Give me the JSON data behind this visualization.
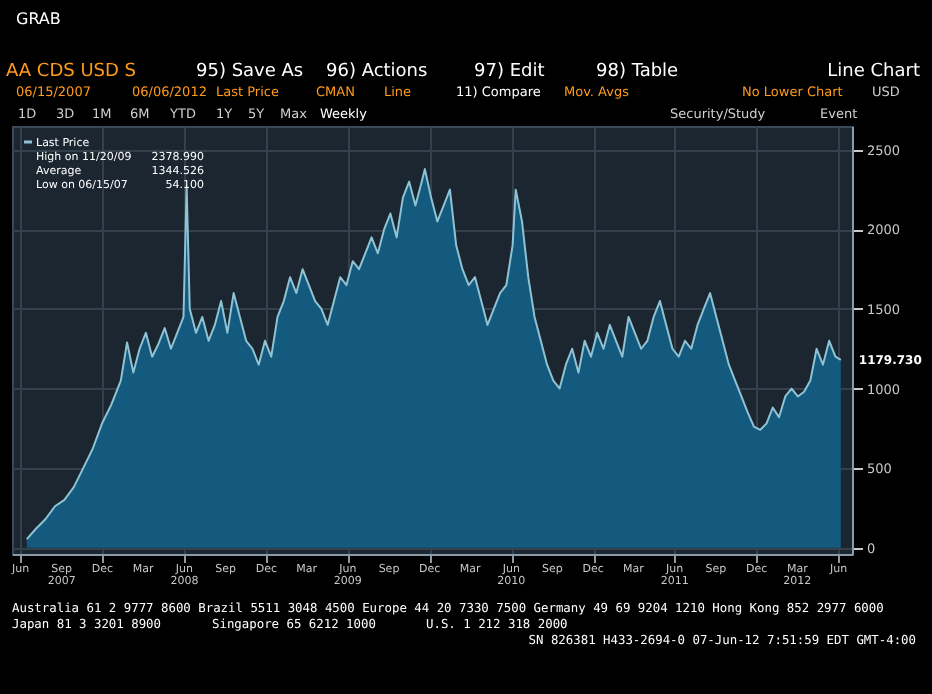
{
  "chart_data": {
    "type": "area",
    "title": "AA CDS USD S",
    "annotations": [
      "GRAB",
      "95) Save As",
      "96) Actions",
      "97) Edit",
      "98) Table",
      "Line Chart",
      "06/15/2007",
      "06/06/2012",
      "Last Price",
      "CMAN",
      "Line",
      "11) Compare",
      "Mov. Avgs",
      "No Lower Chart",
      "USD",
      "1D",
      "3D",
      "1M",
      "6M",
      "YTD",
      "1Y",
      "5Y",
      "Max",
      "Weekly",
      "Security/Study",
      "Event",
      "High on 11/20/09",
      "2378.990",
      "Average",
      "1344.526",
      "Low on 06/15/07",
      "54.100",
      "Australia 61 2 9777 8600 Brazil 5511 3048 4500 Europe 44 20 7330 7500 Germany 49 69 9204 1210 Hong Kong 852 2977 6000",
      "Japan 81 3 3201 8900",
      "Singapore 65 6212 1000",
      "U.S. 1 212 318 2000",
      "SN 826381 H433-2694-0 07-Jun-12 7:51:59 EDT GMT-4:00",
      {
        "text": "1179.730",
        "x": "2012-06-06",
        "y": 1179.73
      }
    ],
    "x": [
      "2007-06-15",
      "2007-07-06",
      "2007-07-27",
      "2007-08-17",
      "2007-09-07",
      "2007-09-28",
      "2007-10-19",
      "2007-11-09",
      "2007-11-30",
      "2007-12-21",
      "2008-01-11",
      "2008-01-25",
      "2008-02-08",
      "2008-02-22",
      "2008-03-07",
      "2008-03-21",
      "2008-04-04",
      "2008-04-18",
      "2008-05-02",
      "2008-05-16",
      "2008-05-30",
      "2008-06-06",
      "2008-06-13",
      "2008-06-27",
      "2008-07-11",
      "2008-07-25",
      "2008-08-08",
      "2008-08-22",
      "2008-09-05",
      "2008-09-19",
      "2008-10-03",
      "2008-10-17",
      "2008-10-31",
      "2008-11-14",
      "2008-11-28",
      "2008-12-12",
      "2008-12-26",
      "2009-01-09",
      "2009-01-23",
      "2009-02-06",
      "2009-02-20",
      "2009-03-06",
      "2009-03-20",
      "2009-04-03",
      "2009-04-17",
      "2009-05-01",
      "2009-05-15",
      "2009-05-29",
      "2009-06-12",
      "2009-06-26",
      "2009-07-10",
      "2009-07-24",
      "2009-08-07",
      "2009-08-21",
      "2009-09-04",
      "2009-09-18",
      "2009-10-02",
      "2009-10-16",
      "2009-10-30",
      "2009-11-13",
      "2009-11-20",
      "2009-12-04",
      "2009-12-18",
      "2010-01-01",
      "2010-01-15",
      "2010-01-29",
      "2010-02-12",
      "2010-02-26",
      "2010-03-12",
      "2010-03-26",
      "2010-04-09",
      "2010-04-23",
      "2010-05-07",
      "2010-05-21",
      "2010-06-04",
      "2010-06-11",
      "2010-06-25",
      "2010-07-09",
      "2010-07-23",
      "2010-08-06",
      "2010-08-20",
      "2010-09-03",
      "2010-09-17",
      "2010-10-01",
      "2010-10-15",
      "2010-10-29",
      "2010-11-12",
      "2010-11-26",
      "2010-12-10",
      "2010-12-24",
      "2011-01-07",
      "2011-01-21",
      "2011-02-04",
      "2011-02-18",
      "2011-03-04",
      "2011-03-18",
      "2011-04-01",
      "2011-04-15",
      "2011-04-29",
      "2011-05-13",
      "2011-05-27",
      "2011-06-10",
      "2011-06-24",
      "2011-07-08",
      "2011-07-22",
      "2011-08-05",
      "2011-08-19",
      "2011-09-02",
      "2011-09-16",
      "2011-09-30",
      "2011-10-14",
      "2011-10-28",
      "2011-11-11",
      "2011-11-25",
      "2011-12-09",
      "2011-12-23",
      "2012-01-06",
      "2012-01-20",
      "2012-02-03",
      "2012-02-17",
      "2012-03-02",
      "2012-03-16",
      "2012-03-30",
      "2012-04-13",
      "2012-04-27",
      "2012-05-11",
      "2012-05-25",
      "2012-06-06"
    ],
    "series": [
      {
        "name": "Last Price",
        "color": "#8fc3d3",
        "values": [
          54,
          120,
          180,
          260,
          300,
          380,
          500,
          620,
          780,
          900,
          1050,
          1290,
          1100,
          1250,
          1350,
          1200,
          1280,
          1380,
          1250,
          1350,
          1450,
          2270,
          1500,
          1350,
          1450,
          1300,
          1400,
          1550,
          1350,
          1600,
          1450,
          1300,
          1250,
          1150,
          1300,
          1200,
          1450,
          1550,
          1700,
          1600,
          1750,
          1650,
          1550,
          1500,
          1400,
          1550,
          1700,
          1650,
          1800,
          1750,
          1850,
          1950,
          1850,
          2000,
          2100,
          1950,
          2200,
          2300,
          2150,
          2300,
          2379,
          2200,
          2050,
          2150,
          2250,
          1900,
          1750,
          1650,
          1700,
          1550,
          1400,
          1500,
          1600,
          1650,
          1900,
          2250,
          2050,
          1700,
          1450,
          1300,
          1150,
          1050,
          1000,
          1150,
          1250,
          1100,
          1300,
          1200,
          1350,
          1250,
          1400,
          1300,
          1200,
          1450,
          1350,
          1250,
          1300,
          1450,
          1550,
          1400,
          1250,
          1200,
          1300,
          1250,
          1400,
          1500,
          1600,
          1450,
          1300,
          1150,
          1050,
          950,
          850,
          760,
          740,
          780,
          880,
          820,
          950,
          1000,
          950,
          980,
          1050,
          1250,
          1150,
          1300,
          1200,
          1179.73
        ]
      }
    ],
    "xlim": [
      "2007-05-13",
      "2012-07-01"
    ],
    "xticks": [
      {
        "value": "2007-06-01",
        "label": "Jun"
      },
      {
        "value": "2007-09-01",
        "label": "Sep\n2007"
      },
      {
        "value": "2007-12-01",
        "label": "Dec"
      },
      {
        "value": "2008-03-01",
        "label": "Mar"
      },
      {
        "value": "2008-06-01",
        "label": "Jun\n2008"
      },
      {
        "value": "2008-09-01",
        "label": "Sep"
      },
      {
        "value": "2008-12-01",
        "label": "Dec"
      },
      {
        "value": "2009-03-01",
        "label": "Mar"
      },
      {
        "value": "2009-06-01",
        "label": "Jun\n2009"
      },
      {
        "value": "2009-09-01",
        "label": "Sep"
      },
      {
        "value": "2009-12-01",
        "label": "Dec"
      },
      {
        "value": "2010-03-01",
        "label": "Mar"
      },
      {
        "value": "2010-06-01",
        "label": "Jun\n2010"
      },
      {
        "value": "2010-09-01",
        "label": "Sep"
      },
      {
        "value": "2010-12-01",
        "label": "Dec"
      },
      {
        "value": "2011-03-01",
        "label": "Mar"
      },
      {
        "value": "2011-06-01",
        "label": "Jun\n2011"
      },
      {
        "value": "2011-09-01",
        "label": "Sep"
      },
      {
        "value": "2011-12-01",
        "label": "Dec"
      },
      {
        "value": "2012-03-01",
        "label": "Mar\n2012"
      },
      {
        "value": "2012-06-01",
        "label": "Jun"
      }
    ],
    "ylim": [
      -40,
      2650
    ],
    "yticks": [
      0,
      500,
      1000,
      1500,
      2000,
      2500
    ],
    "grid": true,
    "legend": "top left"
  }
}
